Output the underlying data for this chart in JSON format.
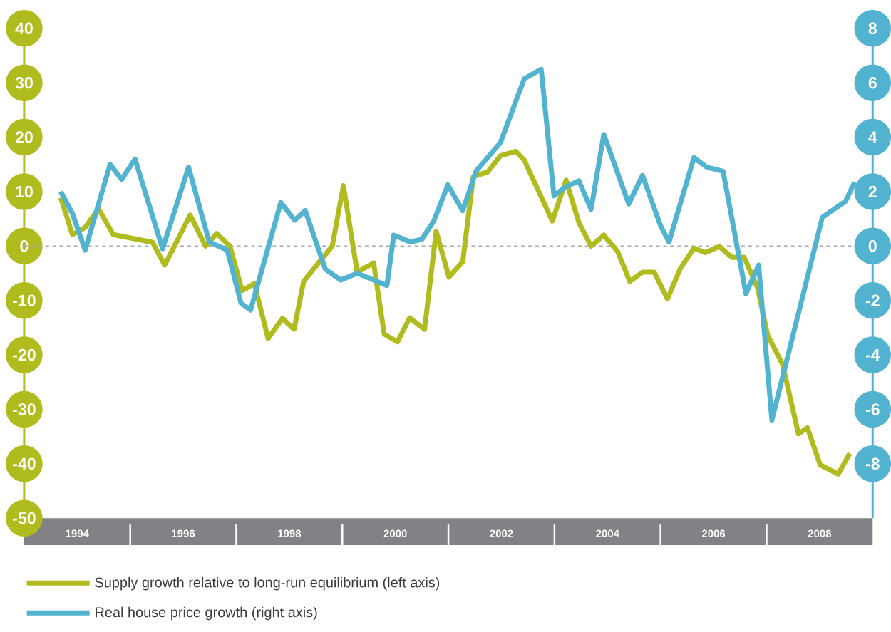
{
  "chart_data": {
    "type": "line",
    "xlim": [
      1993,
      2009
    ],
    "xticks": [
      1994,
      1996,
      1998,
      2000,
      2002,
      2004,
      2006,
      2008
    ],
    "ylim": [
      -50,
      40
    ],
    "yticks": [
      -50,
      -40,
      -30,
      -20,
      -10,
      0,
      10,
      20,
      30,
      40
    ],
    "y2lim": [
      -10,
      8
    ],
    "y2ticks": [
      -8,
      -6,
      -4,
      -2,
      0,
      2,
      4,
      6,
      8
    ],
    "legend": "bottom left",
    "ref_lines": [
      {
        "axis": "y",
        "value": 0,
        "color": "#a7a9ac",
        "line_style": "dashed"
      }
    ],
    "series": [
      {
        "name": "Supply growth relative to long-run equilibrium (left axis)",
        "color": "#b0bb1e",
        "axis": "y",
        "x": [
          1993.69,
          1993.91,
          1994.15,
          1994.4,
          1994.68,
          1995.42,
          1995.65,
          1996.13,
          1996.42,
          1996.63,
          1996.88,
          1997.11,
          1997.34,
          1997.6,
          1997.87,
          1998.09,
          1998.27,
          1998.81,
          1999.02,
          1999.28,
          1999.59,
          1999.79,
          2000.04,
          2000.27,
          2000.55,
          2000.77,
          2001.01,
          2001.27,
          2001.47,
          2001.74,
          2001.98,
          2002.27,
          2002.43,
          2002.96,
          2003.22,
          2003.46,
          2003.69,
          2003.93,
          2004.19,
          2004.42,
          2004.66,
          2004.88,
          2005.13,
          2005.37,
          2005.63,
          2005.84,
          2006.11,
          2006.35,
          2006.58,
          2006.83,
          2007.02,
          2007.3,
          2007.6,
          2007.77,
          2008.01,
          2008.35,
          2008.57
        ],
        "values": [
          8.9,
          2.1,
          3.4,
          6.9,
          2.1,
          0.7,
          -3.5,
          5.7,
          0,
          2.3,
          0,
          -8.2,
          -6.9,
          -17,
          -13.3,
          -15.3,
          -6.5,
          0,
          11.1,
          -4.8,
          -3.1,
          -16.2,
          -17.6,
          -13.2,
          -15.3,
          2.7,
          -5.7,
          -2.9,
          12.8,
          13.6,
          16.6,
          17.4,
          15.8,
          4.6,
          12.1,
          4.3,
          0,
          2.0,
          -1.0,
          -6.5,
          -4.8,
          -4.8,
          -9.7,
          -4.2,
          -0.4,
          -1.2,
          -0.1,
          -2.1,
          -2.1,
          -7.7,
          -16.4,
          -21.7,
          -34.5,
          -33.4,
          -40.2,
          -41.9,
          -38.1
        ]
      },
      {
        "name": "Real house price growth (right axis)",
        "color": "#52b3d0",
        "axis": "y2",
        "x": [
          1993.69,
          1993.91,
          1994.15,
          1994.62,
          1994.84,
          1995.09,
          1995.61,
          1996.1,
          1996.49,
          1996.83,
          1997.09,
          1997.27,
          1997.84,
          1998.1,
          1998.3,
          1998.68,
          1998.97,
          1999.28,
          1999.84,
          1999.97,
          2000.28,
          2000.5,
          2000.72,
          2000.99,
          2001.27,
          2001.52,
          2001.98,
          2002.43,
          2002.75,
          2002.99,
          2003.19,
          2003.46,
          2003.69,
          2003.93,
          2004.4,
          2004.66,
          2005.0,
          2005.16,
          2005.63,
          2005.87,
          2006.18,
          2006.61,
          2006.85,
          2007.1,
          2008.05,
          2008.49,
          2008.66
        ],
        "values": [
          2.0,
          1.2,
          -0.15,
          3.0,
          2.45,
          3.2,
          -0.1,
          2.9,
          0.15,
          -0.15,
          -2.1,
          -2.35,
          1.6,
          0.95,
          1.3,
          -0.85,
          -1.25,
          -1.0,
          -1.45,
          0.4,
          0.15,
          0.25,
          0.9,
          2.25,
          1.3,
          2.75,
          3.8,
          6.15,
          6.5,
          1.85,
          2.15,
          2.4,
          1.35,
          4.1,
          1.55,
          2.6,
          0.75,
          0.15,
          3.25,
          2.9,
          2.75,
          -1.75,
          -0.7,
          -6.4,
          1.05,
          1.65,
          2.35
        ]
      }
    ]
  }
}
